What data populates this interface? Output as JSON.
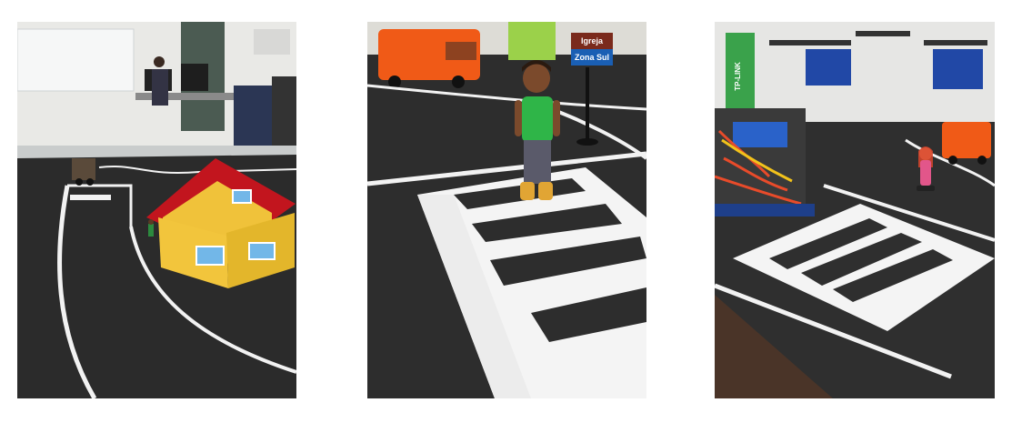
{
  "photos": [
    {
      "id": "photo-1",
      "scene": "miniature-city-track-with-yellow-house",
      "objects": [
        "whiteboard",
        "person-at-computer",
        "robot-car",
        "yellow-house-red-roof",
        "small-figure",
        "white-lane-markings"
      ]
    },
    {
      "id": "photo-2",
      "scene": "doll-standing-on-crosswalk",
      "objects": [
        "orange-garbage-truck",
        "street-sign",
        "boy-doll-green-shirt",
        "crosswalk"
      ],
      "sign": {
        "top_text": "Igreja",
        "bottom_text": "Zona Sul"
      }
    },
    {
      "id": "photo-3",
      "scene": "robot-with-wires-and-crosswalk",
      "objects": [
        "robot-with-wires",
        "chairs-and-tables",
        "tp-link-banner",
        "orange-truck",
        "girl-doll",
        "crosswalk"
      ],
      "banner_text": "TP-LINK"
    }
  ]
}
